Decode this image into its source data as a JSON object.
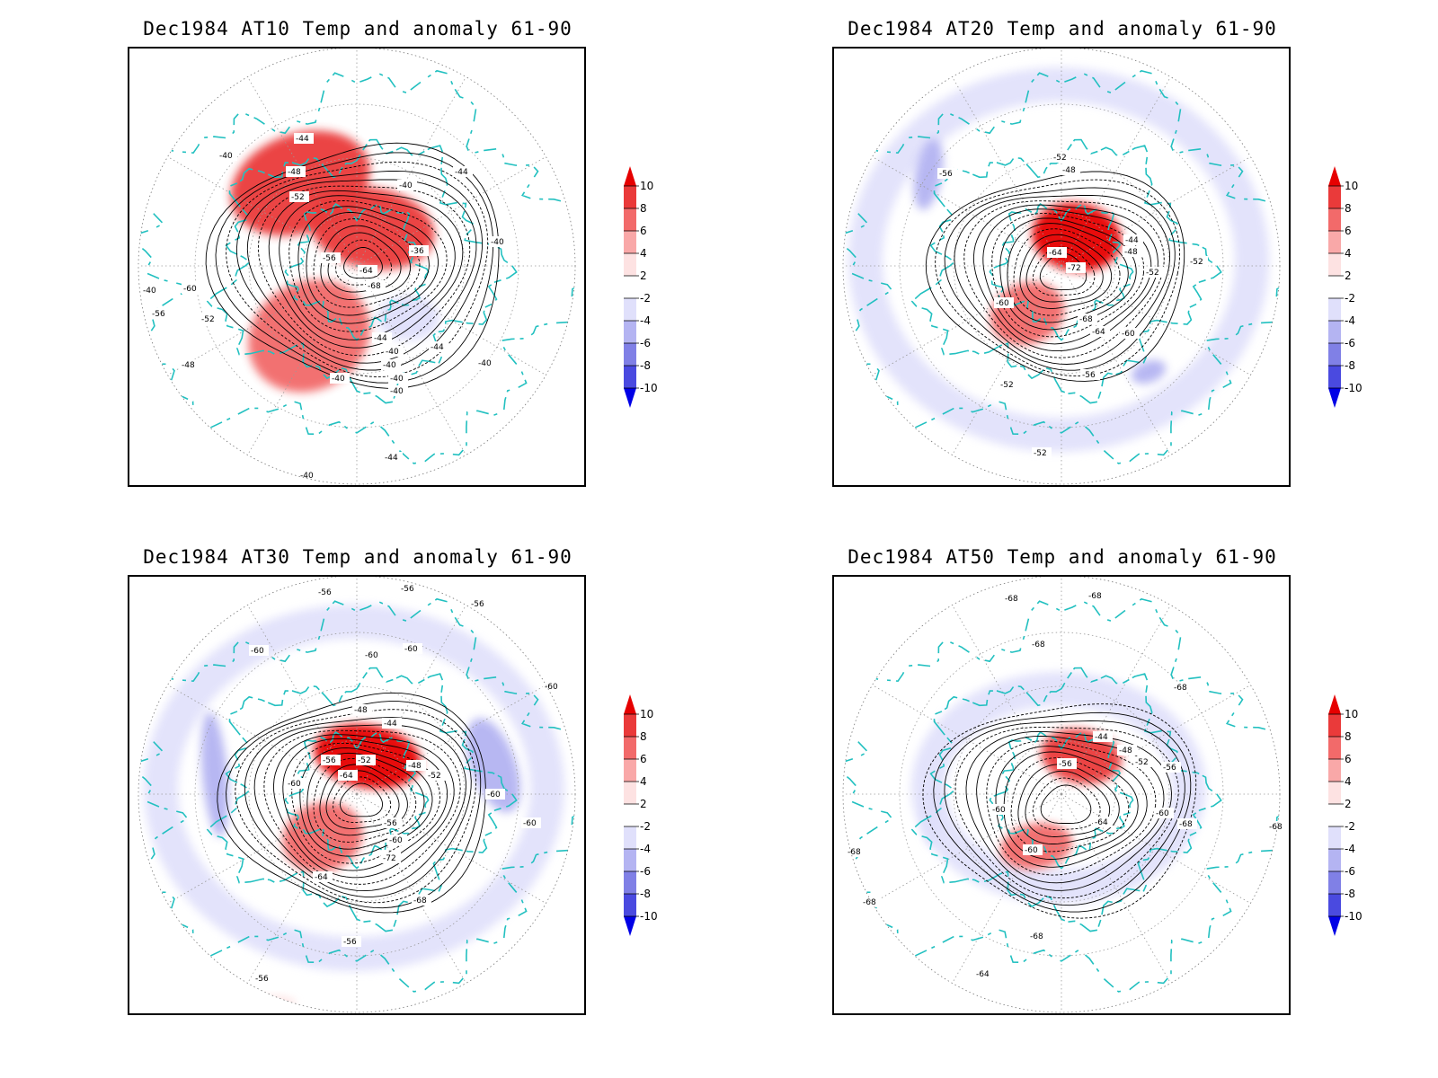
{
  "colors": {
    "coastline": "#22c0c0",
    "contour": "#000000",
    "grid": "#9a9a9a",
    "warm": [
      "#fde2e2",
      "#f9a8a8",
      "#f26a6a",
      "#ea3a3a",
      "#e60000"
    ],
    "cold": [
      "#e0e0fb",
      "#b4b4f2",
      "#8080e6",
      "#4a4ae0",
      "#0000e6"
    ]
  },
  "colorbar": {
    "levels": [
      "10",
      "8",
      "6",
      "4",
      "2",
      "-2",
      "-4",
      "-6",
      "-8",
      "-10"
    ],
    "icons": {
      "top": "arrow-up-triangle",
      "bottom": "arrow-down-triangle"
    }
  },
  "panels": [
    {
      "title": "Dec1984 AT10 Temp and anomaly 61-90",
      "contour_labels": [
        "-44",
        "-40",
        "-48",
        "-52",
        "-44",
        "-40",
        "-40",
        "-56",
        "-64",
        "-68",
        "-36",
        "-44",
        "-40",
        "-40",
        "-40",
        "-60",
        "-56",
        "-52",
        "-48",
        "-44",
        "-40",
        "-40",
        "-40",
        "-40",
        "-40",
        "-44"
      ],
      "anomaly_blobs": [
        {
          "sign": "warm",
          "level": 4
        },
        {
          "sign": "warm",
          "level": 4
        },
        {
          "sign": "warm",
          "level": 3
        },
        {
          "sign": "cold",
          "level": 1
        }
      ]
    },
    {
      "title": "Dec1984 AT20 Temp and anomaly 61-90",
      "contour_labels": [
        "-56",
        "-52",
        "-48",
        "-44",
        "-48",
        "-64",
        "-72",
        "-52",
        "-52",
        "-60",
        "-68",
        "-64",
        "-60",
        "-56",
        "-52",
        "-52"
      ],
      "anomaly_blobs": [
        {
          "sign": "cold",
          "level": 1
        },
        {
          "sign": "cold",
          "level": 2
        },
        {
          "sign": "warm",
          "level": 5
        },
        {
          "sign": "warm",
          "level": 3
        },
        {
          "sign": "cold",
          "level": 2
        }
      ]
    },
    {
      "title": "Dec1984 AT30 Temp and anomaly 61-90",
      "contour_labels": [
        "-56",
        "-56",
        "-56",
        "-60",
        "-60",
        "-60",
        "-48",
        "-44",
        "-56",
        "-52",
        "-48",
        "-52",
        "-64",
        "-60",
        "-56",
        "-60",
        "-72",
        "-68",
        "-64",
        "-60",
        "-60",
        "-60",
        "-56",
        "-56"
      ],
      "anomaly_blobs": [
        {
          "sign": "cold",
          "level": 1
        },
        {
          "sign": "cold",
          "level": 2
        },
        {
          "sign": "cold",
          "level": 2
        },
        {
          "sign": "warm",
          "level": 5
        },
        {
          "sign": "warm",
          "level": 3
        },
        {
          "sign": "warm",
          "level": 1
        }
      ]
    },
    {
      "title": "Dec1984 AT50 Temp and anomaly 61-90",
      "contour_labels": [
        "-68",
        "-68",
        "-68",
        "-68",
        "-44",
        "-48",
        "-52",
        "-56",
        "-56",
        "-60",
        "-60",
        "-68",
        "-64",
        "-60",
        "-68",
        "-68",
        "-68",
        "-64",
        "-68"
      ],
      "anomaly_blobs": [
        {
          "sign": "cold",
          "level": 1
        },
        {
          "sign": "warm",
          "level": 4
        },
        {
          "sign": "warm",
          "level": 3
        },
        {
          "sign": "cold",
          "level": 1
        }
      ]
    }
  ]
}
